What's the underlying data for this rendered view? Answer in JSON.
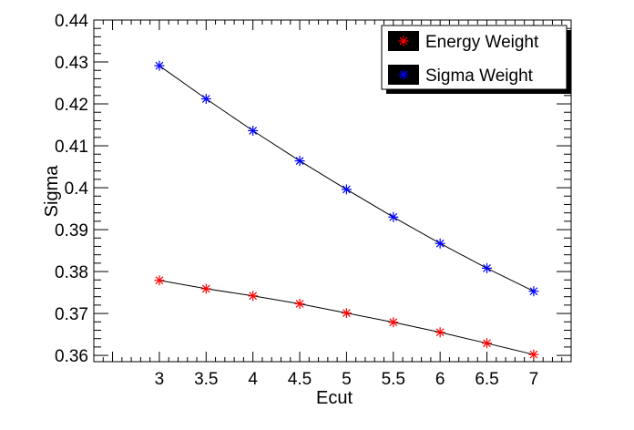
{
  "chart_data": {
    "type": "scatter",
    "xlabel": "Ecut",
    "ylabel": "Sigma",
    "xlim": [
      2.3,
      7.4
    ],
    "ylim": [
      0.3585,
      0.44
    ],
    "x_ticks": [
      3,
      3.5,
      4,
      4.5,
      5,
      5.5,
      6,
      6.5,
      7
    ],
    "x_tick_labels": [
      "3",
      "3.5",
      "4",
      "4.5",
      "5",
      "5.5",
      "6",
      "6.5",
      "7"
    ],
    "y_ticks": [
      0.36,
      0.37,
      0.38,
      0.39,
      0.4,
      0.41,
      0.42,
      0.43,
      0.44
    ],
    "y_tick_labels": [
      "0.36",
      "0.37",
      "0.38",
      "0.39",
      "0.4",
      "0.41",
      "0.42",
      "0.43",
      "0.44"
    ],
    "grid": false,
    "legend_position": "top-right",
    "x": [
      3,
      3.5,
      4,
      4.5,
      5,
      5.5,
      6,
      6.5,
      7
    ],
    "series": [
      {
        "name": "Energy Weight",
        "color": "#ff0000",
        "marker": "asterisk",
        "values": [
          0.3779,
          0.3759,
          0.3742,
          0.3723,
          0.3701,
          0.3679,
          0.3655,
          0.3629,
          0.3602
        ]
      },
      {
        "name": "Sigma Weight",
        "color": "#0000ff",
        "marker": "asterisk",
        "values": [
          0.4291,
          0.4212,
          0.4136,
          0.4064,
          0.3996,
          0.393,
          0.3867,
          0.3808,
          0.3753
        ]
      }
    ]
  }
}
